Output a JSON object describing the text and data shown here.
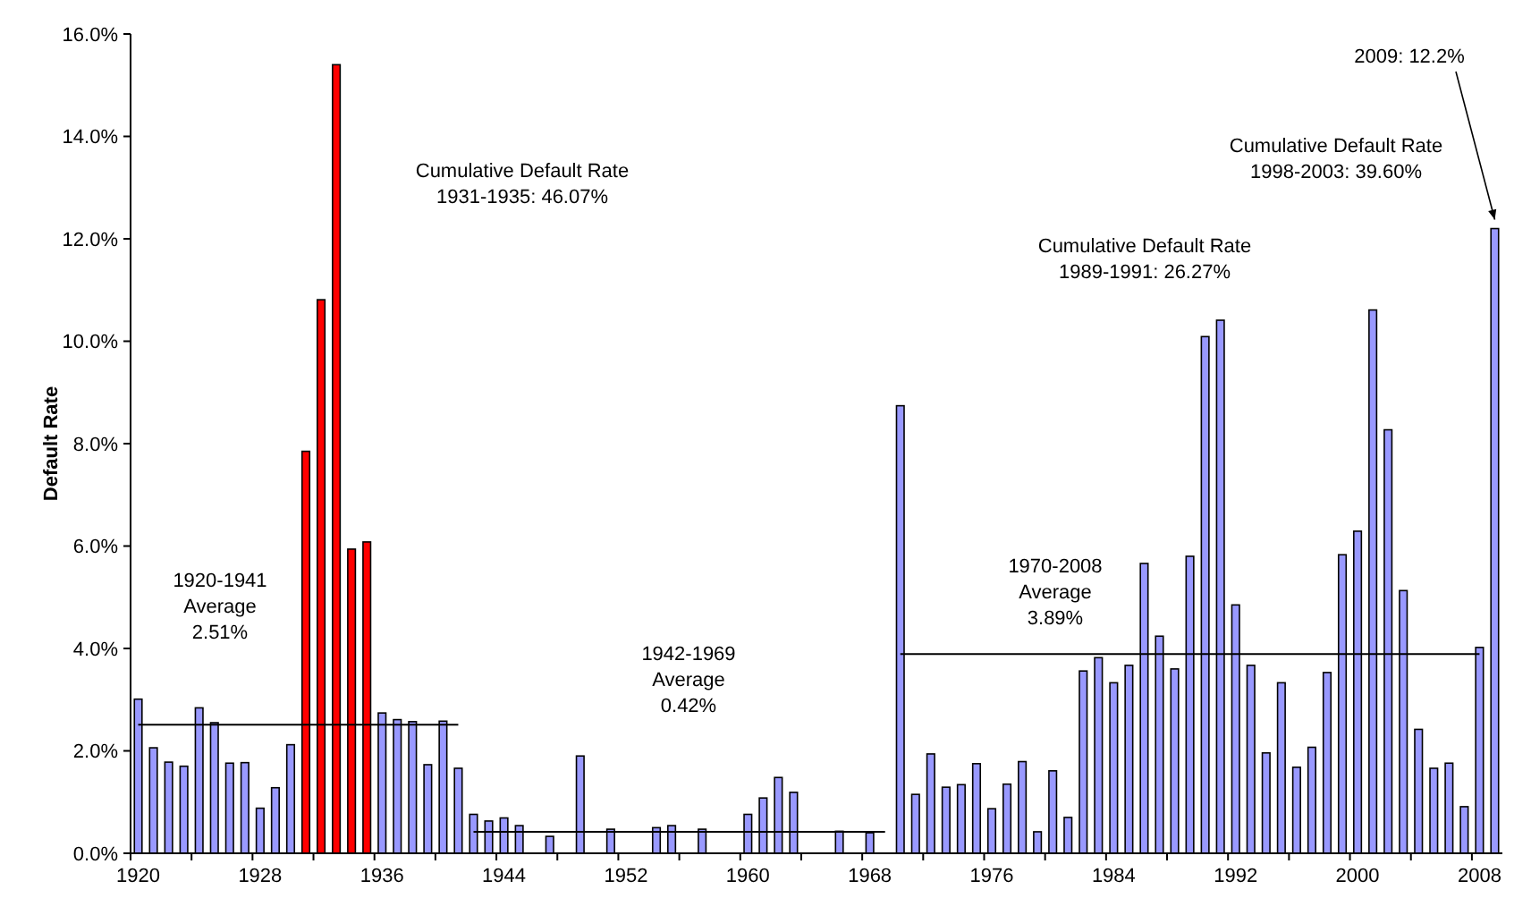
{
  "chart_data": {
    "type": "bar",
    "ylabel": "Default Rate",
    "categories": [
      "1920",
      null,
      null,
      null,
      null,
      null,
      null,
      null,
      "1928",
      null,
      null,
      null,
      null,
      null,
      null,
      null,
      "1936",
      null,
      null,
      null,
      null,
      null,
      null,
      null,
      "1944",
      null,
      null,
      null,
      null,
      null,
      null,
      null,
      "1952",
      null,
      null,
      null,
      null,
      null,
      null,
      null,
      "1960",
      null,
      null,
      null,
      null,
      null,
      null,
      null,
      "1968",
      null,
      null,
      null,
      null,
      null,
      null,
      null,
      "1976",
      null,
      null,
      null,
      null,
      null,
      null,
      null,
      "1984",
      null,
      null,
      null,
      null,
      null,
      null,
      null,
      "1992",
      null,
      null,
      null,
      null,
      null,
      null,
      null,
      "2000",
      null,
      null,
      null,
      null,
      null,
      null,
      null,
      "2008",
      null
    ],
    "series": [
      {
        "values": [
          3.01,
          2.06,
          1.78,
          1.7,
          2.84,
          2.55,
          1.76,
          1.77,
          0.88,
          1.28,
          2.12,
          7.85,
          10.81,
          15.4,
          5.94,
          6.08,
          2.74,
          2.61,
          2.57,
          1.73,
          2.58,
          1.66,
          0.76,
          0.63,
          0.69,
          0.54,
          null,
          0.33,
          null,
          1.9,
          null,
          0.47,
          null,
          null,
          0.5,
          0.54,
          null,
          0.47,
          null,
          null,
          0.76,
          1.08,
          1.48,
          1.19,
          null,
          null,
          0.43,
          null,
          0.4,
          null,
          8.74,
          1.15,
          1.94,
          1.29,
          1.34,
          1.75,
          0.87,
          1.35,
          1.79,
          0.42,
          1.61,
          0.7,
          3.56,
          3.82,
          3.33,
          3.67,
          5.66,
          4.24,
          3.6,
          5.8,
          10.09,
          10.41,
          4.85,
          3.67,
          1.96,
          3.33,
          1.68,
          2.07,
          3.53,
          5.83,
          6.29,
          10.61,
          8.27,
          5.13,
          2.42,
          1.66,
          1.76,
          0.91,
          4.02,
          12.2
        ],
        "colors": [
          "#9999ff",
          "#9999ff",
          "#9999ff",
          "#9999ff",
          "#9999ff",
          "#9999ff",
          "#9999ff",
          "#9999ff",
          "#9999ff",
          "#9999ff",
          "#9999ff",
          "#ff0000",
          "#ff0000",
          "#ff0000",
          "#ff0000",
          "#ff0000",
          "#9999ff",
          "#9999ff",
          "#9999ff",
          "#9999ff",
          "#9999ff",
          "#9999ff",
          "#9999ff",
          "#9999ff",
          "#9999ff",
          "#9999ff",
          "#9999ff",
          "#9999ff",
          "#9999ff",
          "#9999ff",
          "#9999ff",
          "#9999ff",
          "#9999ff",
          "#9999ff",
          "#9999ff",
          "#9999ff",
          "#9999ff",
          "#9999ff",
          "#9999ff",
          "#9999ff",
          "#9999ff",
          "#9999ff",
          "#9999ff",
          "#9999ff",
          "#9999ff",
          "#9999ff",
          "#9999ff",
          "#9999ff",
          "#9999ff",
          "#9999ff",
          "#9999ff",
          "#9999ff",
          "#9999ff",
          "#9999ff",
          "#9999ff",
          "#9999ff",
          "#9999ff",
          "#9999ff",
          "#9999ff",
          "#9999ff",
          "#9999ff",
          "#9999ff",
          "#9999ff",
          "#9999ff",
          "#9999ff",
          "#9999ff",
          "#9999ff",
          "#9999ff",
          "#9999ff",
          "#9999ff",
          "#9999ff",
          "#9999ff",
          "#9999ff",
          "#9999ff",
          "#9999ff",
          "#9999ff",
          "#9999ff",
          "#9999ff",
          "#9999ff",
          "#9999ff",
          "#9999ff",
          "#9999ff",
          "#9999ff",
          "#9999ff",
          "#9999ff",
          "#9999ff",
          "#9999ff",
          "#9999ff",
          "#9999ff",
          "#9999ff"
        ]
      },
      {
        "type": "line",
        "color": "#000000",
        "values": [
          2.51,
          2.51,
          2.51,
          2.51,
          2.51,
          2.51,
          2.51,
          2.51,
          2.51,
          2.51,
          2.51,
          2.51,
          2.51,
          2.51,
          2.51,
          2.51,
          2.51,
          2.51,
          2.51,
          2.51,
          2.51,
          2.51,
          null,
          null,
          null,
          null,
          null,
          null,
          null,
          null,
          null,
          null,
          null,
          null,
          null,
          null,
          null,
          null,
          null,
          null,
          null,
          null,
          null,
          null,
          null,
          null,
          null,
          null,
          null,
          null,
          null,
          null,
          null,
          null,
          null,
          null,
          null,
          null,
          null,
          null,
          null,
          null,
          null,
          null,
          null,
          null,
          null,
          null,
          null,
          null,
          null,
          null,
          null,
          null,
          null,
          null,
          null,
          null,
          null,
          null,
          null,
          null,
          null,
          null,
          null,
          null,
          null,
          null,
          null,
          null
        ]
      },
      {
        "type": "line",
        "color": "#000000",
        "values": [
          null,
          null,
          null,
          null,
          null,
          null,
          null,
          null,
          null,
          null,
          null,
          null,
          null,
          null,
          null,
          null,
          null,
          null,
          null,
          null,
          null,
          null,
          0.42,
          0.42,
          0.42,
          0.42,
          0.42,
          0.42,
          0.42,
          0.42,
          0.42,
          0.42,
          0.42,
          0.42,
          0.42,
          0.42,
          0.42,
          0.42,
          0.42,
          0.42,
          0.42,
          0.42,
          0.42,
          0.42,
          0.42,
          0.42,
          0.42,
          0.42,
          0.42,
          0.42,
          null,
          null,
          null,
          null,
          null,
          null,
          null,
          null,
          null,
          null,
          null,
          null,
          null,
          null,
          null,
          null,
          null,
          null,
          null,
          null,
          null,
          null,
          null,
          null,
          null,
          null,
          null,
          null,
          null,
          null,
          null,
          null,
          null,
          null,
          null,
          null,
          null,
          null,
          null,
          null
        ]
      },
      {
        "type": "line",
        "color": "#000000",
        "values": [
          null,
          null,
          null,
          null,
          null,
          null,
          null,
          null,
          null,
          null,
          null,
          null,
          null,
          null,
          null,
          null,
          null,
          null,
          null,
          null,
          null,
          null,
          null,
          null,
          null,
          null,
          null,
          null,
          null,
          null,
          null,
          null,
          null,
          null,
          null,
          null,
          null,
          null,
          null,
          null,
          null,
          null,
          null,
          null,
          null,
          null,
          null,
          null,
          null,
          null,
          3.89,
          3.89,
          3.89,
          3.89,
          3.89,
          3.89,
          3.89,
          3.89,
          3.89,
          3.89,
          3.89,
          3.89,
          3.89,
          3.89,
          3.89,
          3.89,
          3.89,
          3.89,
          3.89,
          3.89,
          3.89,
          3.89,
          3.89,
          3.89,
          3.89,
          3.89,
          3.89,
          3.89,
          3.89,
          3.89,
          3.89,
          3.89,
          3.89,
          3.89,
          3.89,
          3.89,
          3.89,
          3.89,
          3.89,
          null
        ]
      }
    ],
    "ylim": [
      0,
      16
    ],
    "yticks": [
      {
        "value": 0,
        "label": "0.0%"
      },
      {
        "value": 2,
        "label": "2.0%"
      },
      {
        "value": 4,
        "label": "4.0%"
      },
      {
        "value": 6,
        "label": "6.0%"
      },
      {
        "value": 8,
        "label": "8.0%"
      },
      {
        "value": 10,
        "label": "10.0%"
      },
      {
        "value": 12,
        "label": "12.0%"
      },
      {
        "value": 14,
        "label": "14.0%"
      },
      {
        "value": 16,
        "label": "16.0%"
      }
    ],
    "annotations": [
      "1920-1941\nAverage\n2.51%",
      "Cumulative Default Rate\n1931-1935: 46.07%",
      "1942-1969\nAverage\n0.42%",
      "1970-2008\nAverage\n3.89%",
      "Cumulative Default Rate\n1989-1991: 26.27%",
      "Cumulative Default Rate\n1998-2003: 39.60%",
      "2009: 12.2%"
    ],
    "grid": false
  }
}
